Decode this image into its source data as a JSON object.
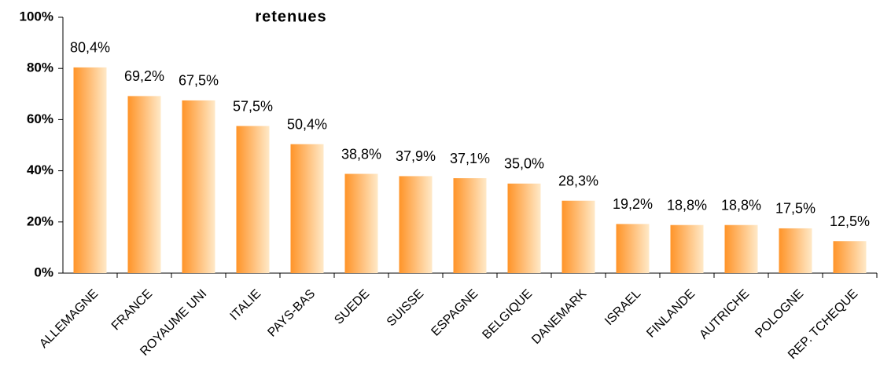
{
  "chart_data": {
    "type": "bar",
    "title": "retenues",
    "categories": [
      "ALLEMAGNE",
      "FRANCE",
      "ROYAUME UNI",
      "ITALIE",
      "PAYS-BAS",
      "SUEDE",
      "SUISSE",
      "ESPAGNE",
      "BELGIQUE",
      "DANEMARK",
      "ISRAEL",
      "FINLANDE",
      "AUTRICHE",
      "POLOGNE",
      "REP. TCHEQUE"
    ],
    "values": [
      80.4,
      69.2,
      67.5,
      57.5,
      50.4,
      38.8,
      37.9,
      37.1,
      35.0,
      28.3,
      19.2,
      18.8,
      18.8,
      17.5,
      12.5
    ],
    "value_labels": [
      "80,4%",
      "69,2%",
      "67,5%",
      "57,5%",
      "50,4%",
      "38,8%",
      "37,9%",
      "37,1%",
      "35,0%",
      "28,3%",
      "19,2%",
      "18,8%",
      "18,8%",
      "17,5%",
      "12,5%"
    ],
    "color": "#ff9428",
    "ylim": [
      0,
      100
    ],
    "yticks": [
      {
        "value": 0,
        "label": "0%"
      },
      {
        "value": 20,
        "label": "20%"
      },
      {
        "value": 40,
        "label": "40%"
      },
      {
        "value": 60,
        "label": "60%"
      },
      {
        "value": 80,
        "label": "80%"
      },
      {
        "value": 100,
        "label": "100%"
      }
    ],
    "grid": false
  }
}
